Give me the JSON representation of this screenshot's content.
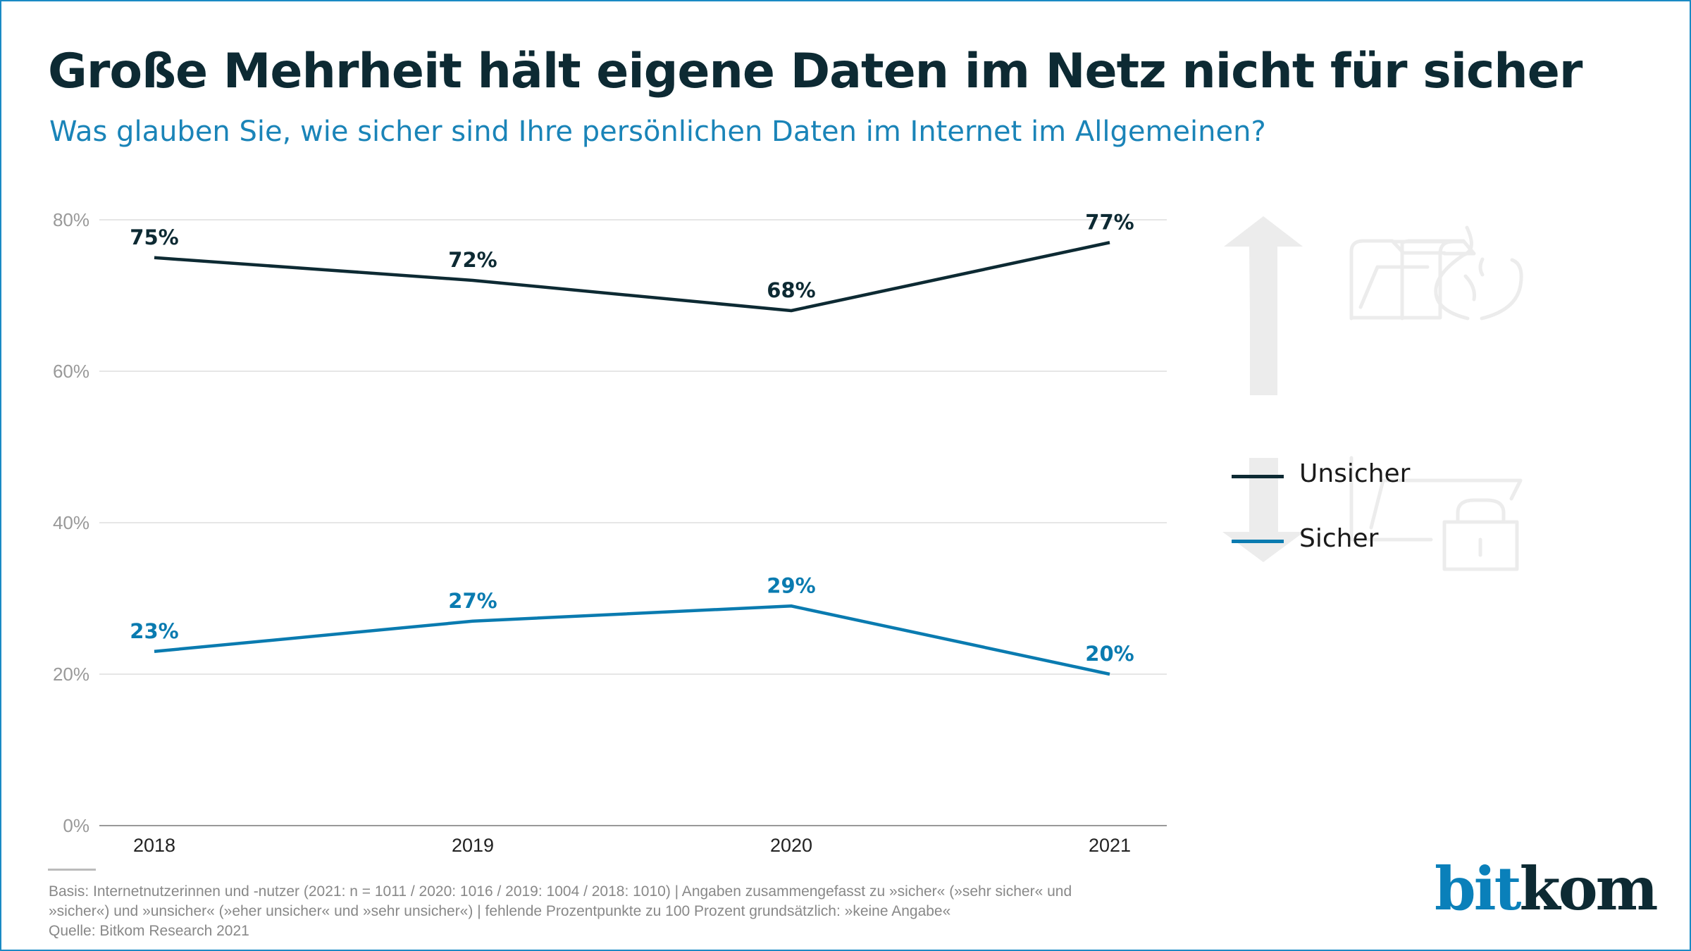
{
  "header": {
    "title": "Große Mehrheit hält eigene Daten im Netz nicht für sicher",
    "subtitle": "Was glauben Sie, wie sicher sind Ihre persönlichen Daten im Internet im Allgemeinen?"
  },
  "chart_data": {
    "type": "line",
    "title": "Große Mehrheit hält eigene Daten im Netz nicht für sicher",
    "subtitle": "Was glauben Sie, wie sicher sind Ihre persönlichen Daten im Internet im Allgemeinen?",
    "x": [
      "2018",
      "2019",
      "2020",
      "2021"
    ],
    "ylim": [
      0,
      80
    ],
    "yticks": [
      0,
      20,
      40,
      60,
      80
    ],
    "ytick_labels": [
      "0%",
      "20%",
      "40%",
      "60%",
      "80%"
    ],
    "grid": true,
    "legend_position": "right",
    "series": [
      {
        "name": "Unsicher",
        "values": [
          75,
          72,
          68,
          77
        ],
        "labels": [
          "75%",
          "72%",
          "68%",
          "77%"
        ],
        "color": "#0d2a33"
      },
      {
        "name": "Sicher",
        "values": [
          23,
          27,
          29,
          20
        ],
        "labels": [
          "23%",
          "27%",
          "29%",
          "20%"
        ],
        "color": "#0a7bb0"
      }
    ]
  },
  "decorations": {
    "icons": [
      "arrow-up-icon",
      "folder-fire-icon",
      "arrow-down-icon",
      "folder-lock-icon"
    ],
    "icon_color": "#ececec"
  },
  "footer": {
    "lines": [
      "Basis: Internetnutzerinnen und -nutzer (2021: n = 1011 / 2020: 1016 / 2019: 1004 / 2018: 1010) | Angaben zusammengefasst zu »sicher« (»sehr sicher« und",
      "»sicher«) und »unsicher« (»eher unsicher« und »sehr unsicher«) | fehlende Prozentpunkte zu 100 Prozent grundsätzlich: »keine Angabe«",
      "Quelle: Bitkom Research 2021"
    ]
  },
  "logo": {
    "part1": "bit",
    "part2": "kom",
    "color1": "#0a80ba",
    "color2": "#0d2a33"
  }
}
